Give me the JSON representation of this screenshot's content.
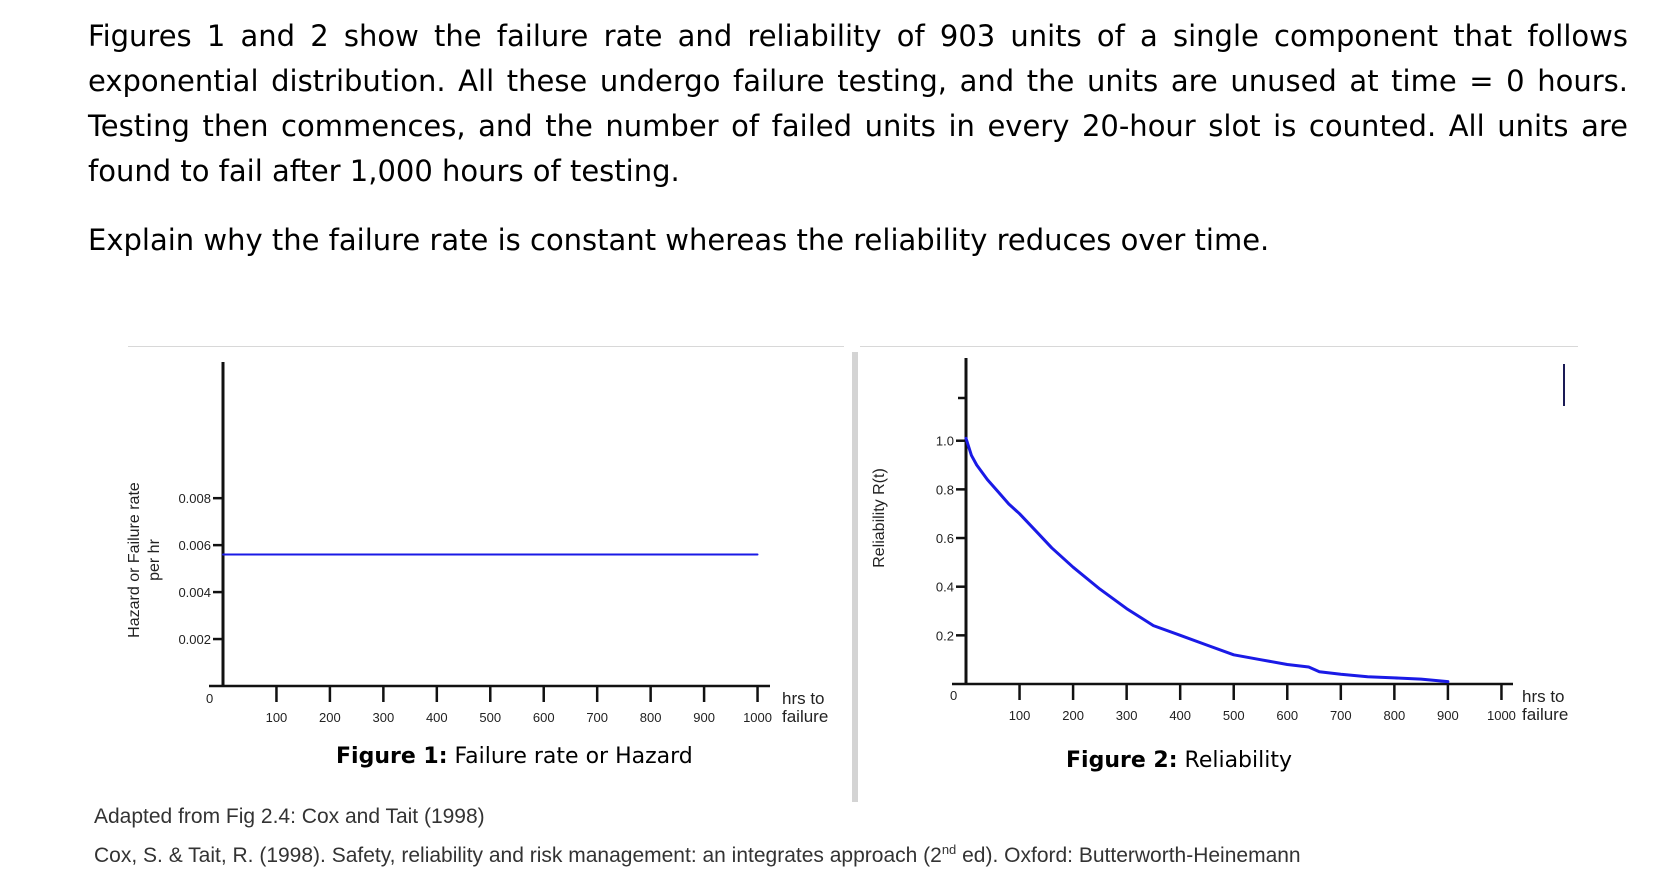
{
  "question": {
    "paragraph": "Figures 1 and 2 show the failure rate and reliability of 903 units of a single component that follows exponential distribution. All these undergo failure testing, and the units are unused at time = 0 hours. Testing then commences, and the number of failed units in every 20-hour slot is counted. All units are found to fail after 1,000 hours of testing.",
    "prompt": "Explain why the failure rate is constant whereas the reliability reduces over time."
  },
  "figure1": {
    "caption_bold": "Figure 1:",
    "caption_text": "Failure rate or Hazard"
  },
  "figure2": {
    "caption_bold": "Figure 2:",
    "caption_text": "Reliability"
  },
  "source": {
    "line1": "Adapted from Fig 2.4: Cox and Tait (1998)",
    "line2_before": "Cox, S. & Tait, R. (1998). Safety, reliability and risk management: an integrates approach (2",
    "line2_sup": "nd",
    "line2_after": " ed). Oxford: Butterworth-Heinemann"
  },
  "chart_data": [
    {
      "type": "line",
      "title": "",
      "ylabel_line1": "Hazard or Failure rate",
      "ylabel_line2": "per hr",
      "xlabel_line1": "hrs to",
      "xlabel_line2": "failure",
      "origin_label": "0",
      "x_ticks": [
        100,
        200,
        300,
        400,
        500,
        600,
        700,
        800,
        900,
        1000
      ],
      "y_ticks": [
        0.002,
        0.004,
        0.006,
        0.008
      ],
      "y_tick_labels": [
        "0.002",
        "0.004",
        "0.006",
        "0.008"
      ],
      "xlim": [
        0,
        1100
      ],
      "ylim": [
        0,
        0.0138
      ],
      "series": [
        {
          "x": [
            0,
            1000
          ],
          "y": [
            0.0056,
            0.0056
          ],
          "color": "#1a1ae6"
        }
      ]
    },
    {
      "type": "line",
      "title": "",
      "ylabel": "Reliability R(t)",
      "xlabel_line1": "hrs to",
      "xlabel_line2": "failure",
      "origin_label": "0",
      "x_ticks": [
        100,
        200,
        300,
        400,
        500,
        600,
        700,
        800,
        900,
        1000
      ],
      "y_ticks": [
        0.2,
        0.4,
        0.6,
        0.8,
        1.0
      ],
      "y_tick_labels": [
        "0.2",
        "0.4",
        "0.6",
        "0.8",
        "1.0"
      ],
      "xlim": [
        0,
        1100
      ],
      "ylim": [
        0,
        1.34
      ],
      "series": [
        {
          "color": "#1a1ae6",
          "x": [
            0,
            10,
            20,
            40,
            60,
            80,
            100,
            130,
            160,
            200,
            250,
            300,
            350,
            400,
            450,
            500,
            550,
            600,
            640,
            660,
            700,
            750,
            800,
            850,
            900
          ],
          "y": [
            1.01,
            0.94,
            0.9,
            0.84,
            0.79,
            0.74,
            0.7,
            0.63,
            0.56,
            0.48,
            0.39,
            0.31,
            0.24,
            0.2,
            0.16,
            0.12,
            0.1,
            0.08,
            0.07,
            0.05,
            0.04,
            0.03,
            0.025,
            0.02,
            0.01
          ]
        }
      ]
    }
  ]
}
